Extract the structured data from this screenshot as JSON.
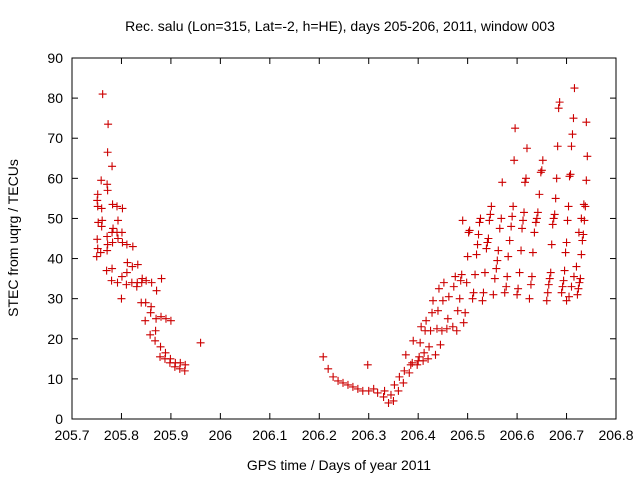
{
  "chart_data": {
    "type": "scatter",
    "title": "Rec. salu (Lon=315, Lat=-2, h=HE), days 205-206, 2011, window 003",
    "xlabel": "GPS time / Days of year 2011",
    "ylabel": "STEC from uqrg / TECUs",
    "xlim": [
      205.7,
      206.8
    ],
    "ylim": [
      0,
      90
    ],
    "xticks": [
      "205.7",
      "205.8",
      "205.9",
      "206",
      "206.1",
      "206.2",
      "206.3",
      "206.4",
      "206.5",
      "206.6",
      "206.7",
      "206.8"
    ],
    "yticks": [
      "0",
      "10",
      "20",
      "30",
      "40",
      "50",
      "60",
      "70",
      "80",
      "90"
    ],
    "grid": false,
    "legend": "none",
    "marker": "plus",
    "color": "#cc0000",
    "points": [
      [
        205.75,
        40.5
      ],
      [
        205.752,
        42.5
      ],
      [
        205.751,
        44.8
      ],
      [
        205.753,
        49.0
      ],
      [
        205.752,
        53.0
      ],
      [
        205.751,
        54.5
      ],
      [
        205.752,
        56.0
      ],
      [
        205.758,
        41.5
      ],
      [
        205.76,
        48.0
      ],
      [
        205.761,
        49.5
      ],
      [
        205.76,
        52.5
      ],
      [
        205.759,
        59.5
      ],
      [
        205.762,
        81.0
      ],
      [
        205.77,
        37.0
      ],
      [
        205.771,
        42.0
      ],
      [
        205.772,
        43.5
      ],
      [
        205.771,
        45.5
      ],
      [
        205.772,
        57.0
      ],
      [
        205.771,
        58.5
      ],
      [
        205.772,
        66.5
      ],
      [
        205.773,
        73.5
      ],
      [
        205.78,
        34.5
      ],
      [
        205.781,
        37.5
      ],
      [
        205.782,
        44.0
      ],
      [
        205.781,
        46.5
      ],
      [
        205.783,
        47.5
      ],
      [
        205.782,
        53.5
      ],
      [
        205.781,
        63.0
      ],
      [
        205.792,
        34.0
      ],
      [
        205.793,
        45.0
      ],
      [
        205.791,
        46.5
      ],
      [
        205.793,
        49.5
      ],
      [
        205.791,
        53.0
      ],
      [
        205.8,
        30.0
      ],
      [
        205.801,
        35.5
      ],
      [
        205.802,
        44.0
      ],
      [
        205.801,
        46.5
      ],
      [
        205.802,
        52.5
      ],
      [
        205.81,
        33.5
      ],
      [
        205.811,
        36.5
      ],
      [
        205.812,
        39.0
      ],
      [
        205.811,
        43.5
      ],
      [
        205.821,
        34.0
      ],
      [
        205.822,
        38.0
      ],
      [
        205.823,
        43.0
      ],
      [
        205.831,
        33.0
      ],
      [
        205.832,
        34.0
      ],
      [
        205.833,
        38.5
      ],
      [
        205.84,
        29.0
      ],
      [
        205.841,
        34.0
      ],
      [
        205.842,
        35.0
      ],
      [
        205.848,
        24.5
      ],
      [
        205.849,
        29.0
      ],
      [
        205.85,
        34.5
      ],
      [
        205.858,
        21.0
      ],
      [
        205.859,
        26.5
      ],
      [
        205.86,
        28.0
      ],
      [
        205.861,
        34.0
      ],
      [
        205.868,
        19.5
      ],
      [
        205.869,
        22.0
      ],
      [
        205.87,
        25.0
      ],
      [
        205.871,
        32.0
      ],
      [
        205.878,
        15.5
      ],
      [
        205.879,
        18.0
      ],
      [
        205.88,
        25.5
      ],
      [
        205.881,
        35.0
      ],
      [
        205.888,
        15.0
      ],
      [
        205.889,
        16.5
      ],
      [
        205.89,
        25.0
      ],
      [
        205.898,
        14.0
      ],
      [
        205.899,
        15.0
      ],
      [
        205.9,
        24.5
      ],
      [
        205.908,
        13.0
      ],
      [
        205.909,
        14.0
      ],
      [
        205.918,
        12.5
      ],
      [
        205.919,
        14.0
      ],
      [
        205.928,
        12.0
      ],
      [
        205.929,
        13.5
      ],
      [
        205.96,
        19.0
      ],
      [
        206.208,
        15.5
      ],
      [
        206.218,
        12.5
      ],
      [
        206.228,
        10.5
      ],
      [
        206.238,
        9.5
      ],
      [
        206.248,
        9.0
      ],
      [
        206.258,
        8.5
      ],
      [
        206.268,
        8.0
      ],
      [
        206.278,
        7.5
      ],
      [
        206.288,
        7.0
      ],
      [
        206.298,
        13.5
      ],
      [
        206.3,
        7.0
      ],
      [
        206.31,
        7.5
      ],
      [
        206.318,
        6.5
      ],
      [
        206.33,
        5.5
      ],
      [
        206.332,
        7.0
      ],
      [
        206.34,
        4.0
      ],
      [
        206.345,
        6.0
      ],
      [
        206.35,
        4.5
      ],
      [
        206.352,
        8.5
      ],
      [
        206.36,
        7.0
      ],
      [
        206.362,
        10.5
      ],
      [
        206.37,
        9.0
      ],
      [
        206.372,
        12.0
      ],
      [
        206.375,
        16.0
      ],
      [
        206.382,
        11.5
      ],
      [
        206.385,
        13.5
      ],
      [
        206.388,
        14.0
      ],
      [
        206.39,
        19.5
      ],
      [
        206.398,
        13.5
      ],
      [
        206.4,
        14.5
      ],
      [
        206.402,
        15.5
      ],
      [
        206.404,
        19.0
      ],
      [
        206.406,
        23.0
      ],
      [
        206.41,
        14.5
      ],
      [
        206.412,
        16.5
      ],
      [
        206.414,
        22.0
      ],
      [
        206.416,
        24.5
      ],
      [
        206.42,
        15.0
      ],
      [
        206.422,
        18.0
      ],
      [
        206.425,
        22.0
      ],
      [
        206.428,
        26.5
      ],
      [
        206.43,
        29.5
      ],
      [
        206.435,
        16.0
      ],
      [
        206.438,
        22.5
      ],
      [
        206.44,
        27.0
      ],
      [
        206.442,
        32.5
      ],
      [
        206.445,
        18.5
      ],
      [
        206.448,
        22.0
      ],
      [
        206.45,
        29.5
      ],
      [
        206.452,
        34.0
      ],
      [
        206.458,
        22.5
      ],
      [
        206.46,
        25.0
      ],
      [
        206.462,
        30.5
      ],
      [
        206.47,
        23.0
      ],
      [
        206.472,
        33.0
      ],
      [
        206.475,
        35.5
      ],
      [
        206.478,
        22.0
      ],
      [
        206.48,
        27.0
      ],
      [
        206.484,
        30.0
      ],
      [
        206.486,
        34.5
      ],
      [
        206.488,
        36.0
      ],
      [
        206.49,
        49.5
      ],
      [
        206.492,
        24.0
      ],
      [
        206.495,
        26.5
      ],
      [
        206.498,
        34.0
      ],
      [
        206.5,
        40.5
      ],
      [
        206.502,
        46.5
      ],
      [
        206.504,
        47.0
      ],
      [
        206.51,
        30.0
      ],
      [
        206.512,
        31.5
      ],
      [
        206.515,
        36.0
      ],
      [
        206.518,
        41.0
      ],
      [
        206.52,
        43.5
      ],
      [
        206.522,
        46.0
      ],
      [
        206.524,
        49.0
      ],
      [
        206.526,
        50.0
      ],
      [
        206.53,
        29.5
      ],
      [
        206.532,
        31.5
      ],
      [
        206.535,
        36.5
      ],
      [
        206.538,
        42.5
      ],
      [
        206.54,
        44.0
      ],
      [
        206.542,
        45.0
      ],
      [
        206.544,
        49.5
      ],
      [
        206.546,
        51.0
      ],
      [
        206.548,
        53.0
      ],
      [
        206.552,
        31.0
      ],
      [
        206.555,
        35.0
      ],
      [
        206.558,
        37.5
      ],
      [
        206.56,
        39.5
      ],
      [
        206.562,
        42.0
      ],
      [
        206.565,
        47.5
      ],
      [
        206.568,
        50.0
      ],
      [
        206.57,
        59.0
      ],
      [
        206.575,
        31.5
      ],
      [
        206.578,
        33.0
      ],
      [
        206.58,
        35.5
      ],
      [
        206.582,
        40.5
      ],
      [
        206.585,
        44.5
      ],
      [
        206.588,
        48.0
      ],
      [
        206.59,
        50.5
      ],
      [
        206.592,
        53.0
      ],
      [
        206.594,
        64.5
      ],
      [
        206.596,
        72.5
      ],
      [
        206.6,
        31.0
      ],
      [
        206.602,
        32.5
      ],
      [
        206.605,
        36.5
      ],
      [
        206.608,
        42.0
      ],
      [
        206.61,
        47.5
      ],
      [
        206.612,
        49.5
      ],
      [
        206.614,
        51.5
      ],
      [
        206.616,
        59.0
      ],
      [
        206.618,
        60.0
      ],
      [
        206.62,
        67.5
      ],
      [
        206.625,
        30.0
      ],
      [
        206.628,
        33.5
      ],
      [
        206.63,
        35.5
      ],
      [
        206.632,
        41.5
      ],
      [
        206.635,
        46.5
      ],
      [
        206.638,
        49.0
      ],
      [
        206.64,
        50.0
      ],
      [
        206.642,
        51.5
      ],
      [
        206.645,
        56.0
      ],
      [
        206.648,
        61.5
      ],
      [
        206.65,
        62.0
      ],
      [
        206.652,
        64.5
      ],
      [
        206.66,
        29.5
      ],
      [
        206.662,
        31.5
      ],
      [
        206.664,
        33.5
      ],
      [
        206.666,
        35.0
      ],
      [
        206.668,
        36.5
      ],
      [
        206.67,
        43.5
      ],
      [
        206.672,
        48.5
      ],
      [
        206.674,
        50.0
      ],
      [
        206.676,
        51.0
      ],
      [
        206.678,
        55.0
      ],
      [
        206.68,
        60.0
      ],
      [
        206.682,
        68.0
      ],
      [
        206.684,
        77.5
      ],
      [
        206.686,
        79.0
      ],
      [
        206.69,
        31.5
      ],
      [
        206.692,
        33.0
      ],
      [
        206.694,
        34.5
      ],
      [
        206.696,
        37.0
      ],
      [
        206.698,
        41.5
      ],
      [
        206.7,
        44.0
      ],
      [
        206.702,
        49.5
      ],
      [
        206.704,
        53.0
      ],
      [
        206.706,
        60.5
      ],
      [
        206.708,
        61.0
      ],
      [
        206.71,
        68.0
      ],
      [
        206.712,
        71.0
      ],
      [
        206.714,
        75.0
      ],
      [
        206.716,
        82.5
      ],
      [
        206.722,
        31.0
      ],
      [
        206.724,
        32.5
      ],
      [
        206.726,
        34.0
      ],
      [
        206.728,
        35.0
      ],
      [
        206.73,
        41.0
      ],
      [
        206.732,
        44.5
      ],
      [
        206.734,
        46.0
      ],
      [
        206.736,
        49.5
      ],
      [
        206.738,
        53.0
      ],
      [
        206.74,
        59.5
      ],
      [
        206.742,
        65.5
      ],
      [
        206.7,
        29.5
      ],
      [
        206.705,
        30.5
      ],
      [
        206.71,
        33.0
      ],
      [
        206.715,
        35.5
      ],
      [
        206.72,
        38.0
      ],
      [
        206.725,
        46.5
      ],
      [
        206.73,
        50.0
      ],
      [
        206.735,
        53.5
      ],
      [
        206.74,
        74.0
      ]
    ]
  }
}
